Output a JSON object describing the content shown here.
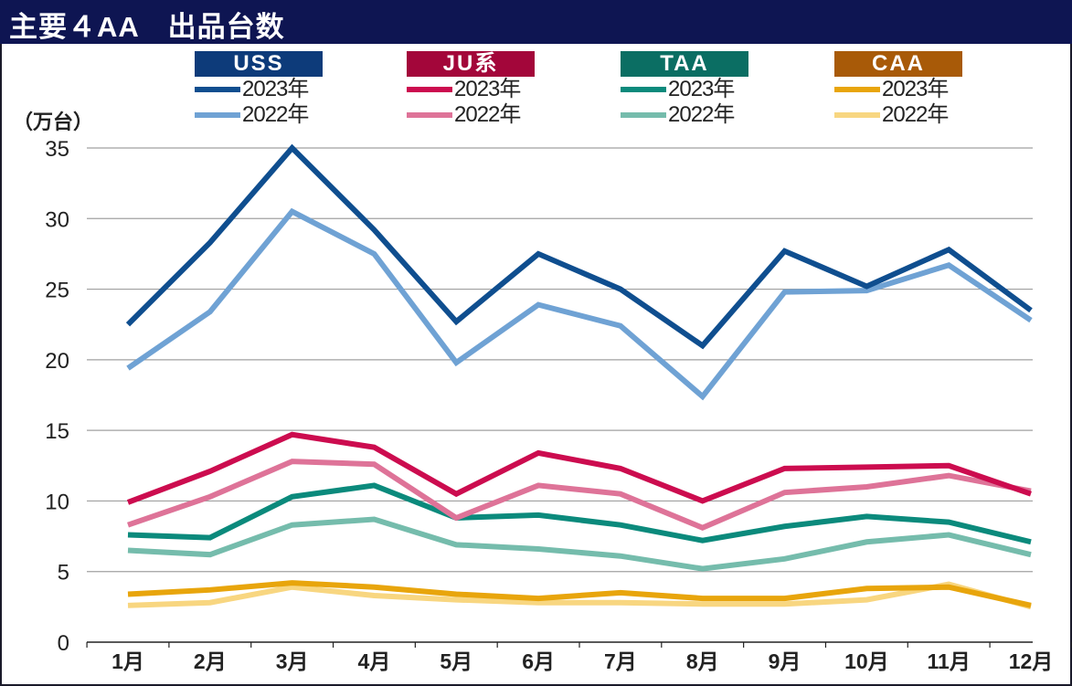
{
  "header": {
    "title": "主要４AA　出品台数"
  },
  "chart_data": {
    "type": "line",
    "title": "主要４AA　出品台数",
    "ylabel": "（万台）",
    "xlabel": "",
    "ylim": [
      0,
      35
    ],
    "yticks": [
      "0",
      "5",
      "10",
      "15",
      "20",
      "25",
      "30",
      "35"
    ],
    "categories": [
      "1月",
      "2月",
      "3月",
      "4月",
      "5月",
      "6月",
      "7月",
      "8月",
      "9月",
      "10月",
      "11月",
      "12月"
    ],
    "grid": true,
    "legend_placement": "top",
    "groups": [
      {
        "name": "USS",
        "color": "#0d3b7a"
      },
      {
        "name": "JU系",
        "color": "#a3063a"
      },
      {
        "name": "TAA",
        "color": "#0b6e63"
      },
      {
        "name": "CAA",
        "color": "#a85a08"
      }
    ],
    "series": [
      {
        "group": 0,
        "name": "2023年",
        "color": "#0f4e8f",
        "values": [
          22.5,
          28.3,
          35.0,
          29.2,
          22.7,
          27.5,
          25.0,
          21.0,
          27.7,
          25.2,
          27.8,
          23.5
        ]
      },
      {
        "group": 0,
        "name": "2022年",
        "color": "#6fa2d4",
        "values": [
          19.4,
          23.4,
          30.5,
          27.5,
          19.8,
          23.9,
          22.4,
          17.4,
          24.8,
          24.9,
          26.7,
          22.8
        ]
      },
      {
        "group": 1,
        "name": "2023年",
        "color": "#cc0c4f",
        "values": [
          9.9,
          12.1,
          14.7,
          13.8,
          10.5,
          13.4,
          12.3,
          10.0,
          12.3,
          12.4,
          12.5,
          10.5
        ]
      },
      {
        "group": 1,
        "name": "2022年",
        "color": "#de7398",
        "values": [
          8.3,
          10.3,
          12.8,
          12.6,
          8.8,
          11.1,
          10.5,
          8.1,
          10.6,
          11.0,
          11.8,
          10.7
        ]
      },
      {
        "group": 2,
        "name": "2023年",
        "color": "#0b8a7c",
        "values": [
          7.6,
          7.4,
          10.3,
          11.1,
          8.8,
          9.0,
          8.3,
          7.2,
          8.2,
          8.9,
          8.5,
          7.1
        ]
      },
      {
        "group": 2,
        "name": "2022年",
        "color": "#75bcac",
        "values": [
          6.5,
          6.2,
          8.3,
          8.7,
          6.9,
          6.6,
          6.1,
          5.2,
          5.9,
          7.1,
          7.6,
          6.2
        ]
      },
      {
        "group": 3,
        "name": "2023年",
        "color": "#e8a50c",
        "values": [
          3.4,
          3.7,
          4.2,
          3.9,
          3.4,
          3.1,
          3.5,
          3.1,
          3.1,
          3.8,
          3.9,
          2.6
        ]
      },
      {
        "group": 3,
        "name": "2022年",
        "color": "#f8d680",
        "values": [
          2.6,
          2.8,
          3.9,
          3.3,
          3.0,
          2.8,
          2.8,
          2.7,
          2.7,
          3.0,
          4.1,
          2.5
        ]
      }
    ]
  }
}
